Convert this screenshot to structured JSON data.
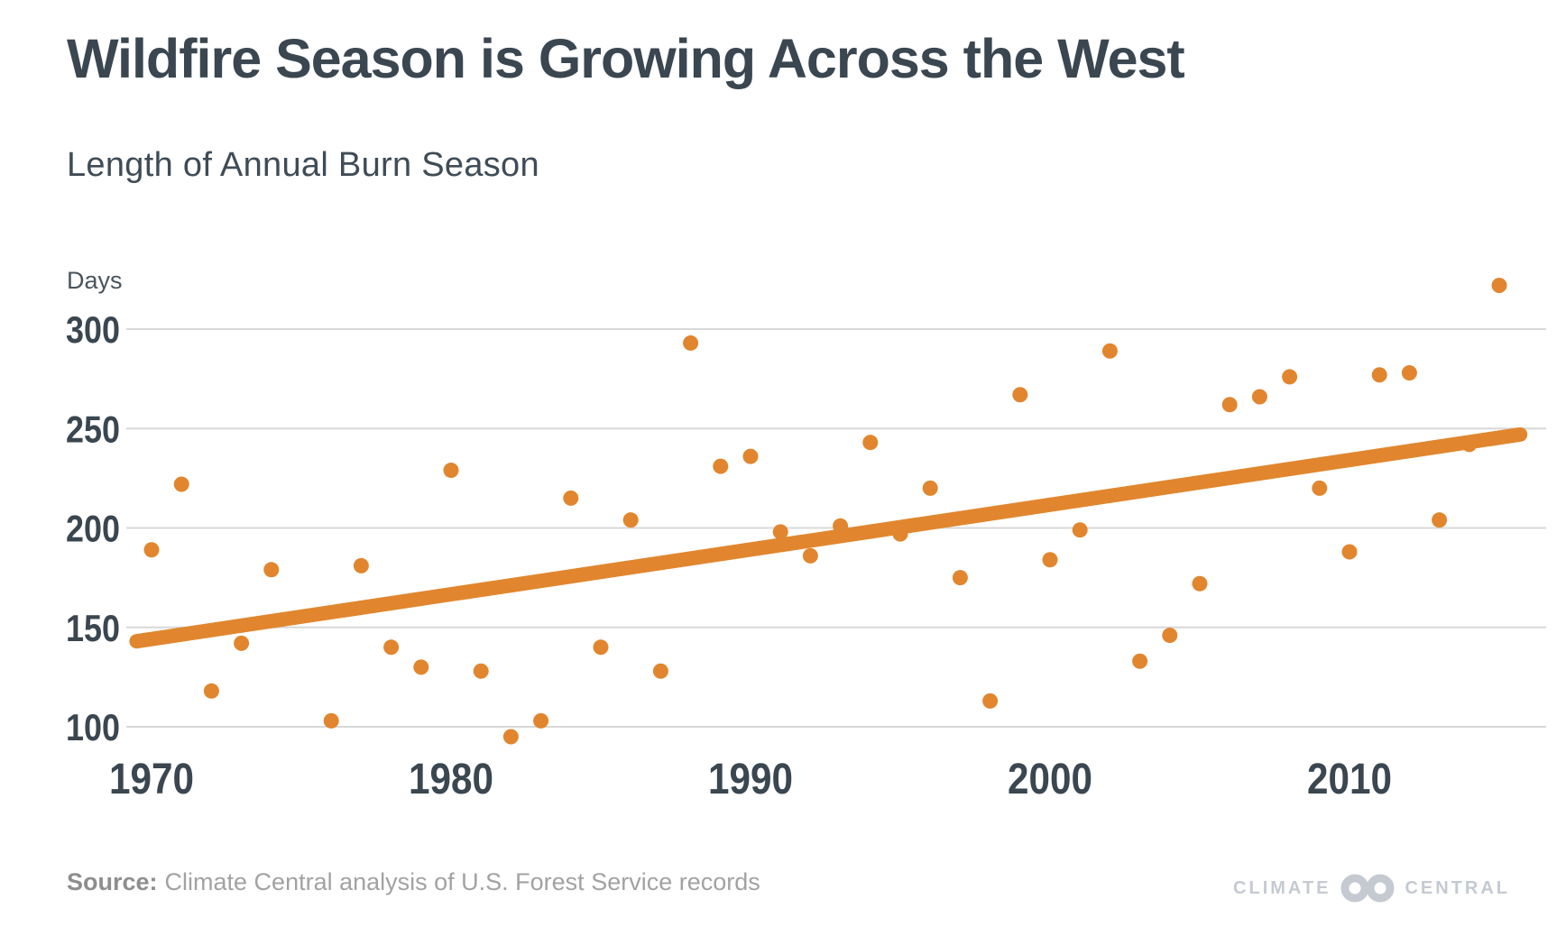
{
  "chart_data": {
    "type": "scatter",
    "title": "Wildfire Season is Growing Across the West",
    "subtitle": "Length of Annual Burn Season",
    "unit_label": "Days",
    "xlabel": "",
    "ylabel": "Days",
    "x_ticks": [
      1970,
      1980,
      1990,
      2000,
      2010
    ],
    "y_ticks": [
      100,
      150,
      200,
      250,
      300
    ],
    "xlim": [
      1969.2,
      2016.6
    ],
    "ylim": [
      85,
      335
    ],
    "grid": "horizontal-only",
    "legend_position": "none",
    "point_color": "#E1862E",
    "trend_color": "#E1862E",
    "series": [
      {
        "name": "Annual burn season length",
        "kind": "points",
        "x": [
          1970,
          1971,
          1972,
          1973,
          1974,
          1976,
          1977,
          1978,
          1979,
          1980,
          1981,
          1982,
          1983,
          1984,
          1985,
          1986,
          1987,
          1988,
          1989,
          1990,
          1991,
          1992,
          1993,
          1994,
          1995,
          1996,
          1997,
          1998,
          1999,
          2000,
          2001,
          2002,
          2003,
          2004,
          2005,
          2006,
          2007,
          2008,
          2009,
          2010,
          2011,
          2012,
          2013,
          2014,
          2015
        ],
        "y": [
          189,
          222,
          118,
          142,
          179,
          103,
          181,
          140,
          130,
          229,
          128,
          95,
          103,
          215,
          140,
          204,
          128,
          293,
          231,
          236,
          198,
          186,
          201,
          243,
          197,
          220,
          175,
          113,
          267,
          184,
          199,
          289,
          133,
          146,
          172,
          262,
          266,
          276,
          220,
          188,
          277,
          278,
          204,
          242,
          322
        ]
      },
      {
        "name": "Linear trend",
        "kind": "trendline",
        "x": [
          1969.5,
          2015.7
        ],
        "y": [
          143,
          247
        ]
      }
    ]
  },
  "footer": {
    "source_label": "Source:",
    "source_text": "Climate Central analysis of U.S. Forest Service records",
    "logo_left": "CLIMATE",
    "logo_right": "CENTRAL",
    "logo_icon": "interlocking-rings"
  },
  "colors": {
    "accent_orange": "#E1862E",
    "heading_slate": "#3A4650",
    "gridline_gray": "#D8D8D8",
    "source_gray": "#A2A2A2",
    "logo_gray": "#C5CAD2",
    "background": "#FFFFFF"
  }
}
